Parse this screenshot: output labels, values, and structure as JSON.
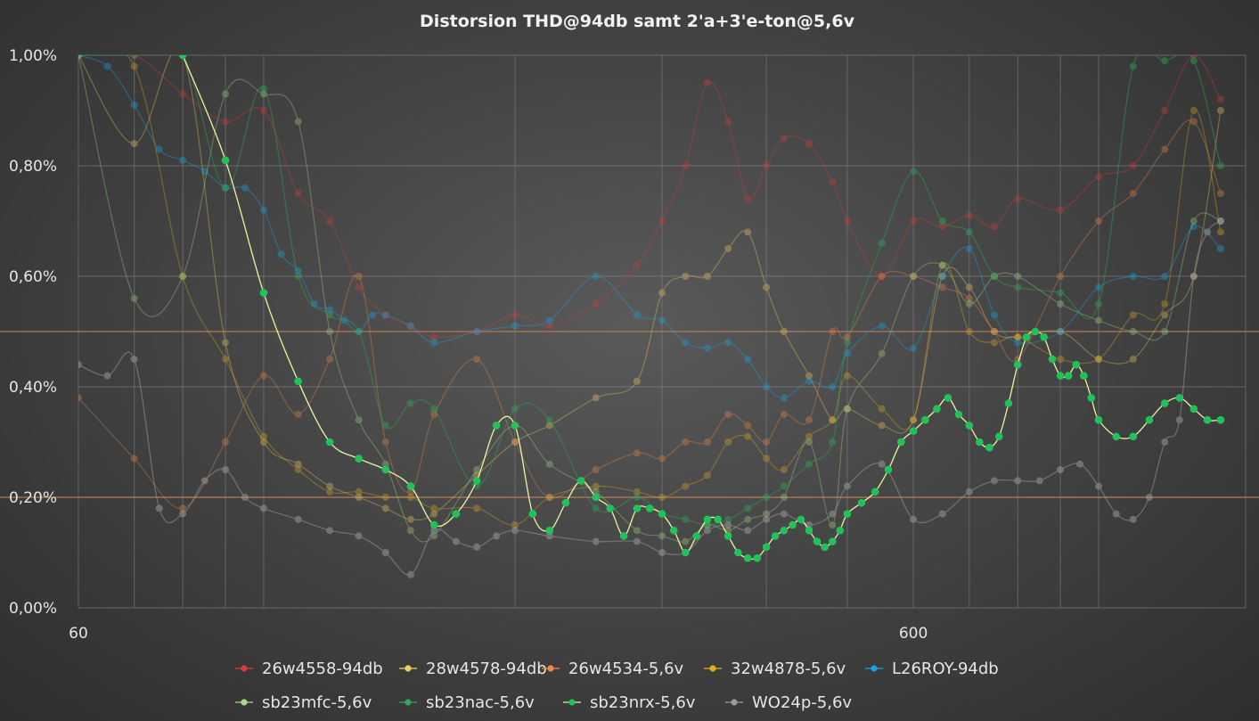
{
  "chart_data": {
    "type": "line",
    "title": "Distorsion THD@94db samt 2'a+3'e-ton@5,6v",
    "x_scale": "log",
    "xlim": [
      60,
      1500
    ],
    "ylim": [
      0,
      1.0
    ],
    "y_ticks": [
      "0,00%",
      "0,20%",
      "0,40%",
      "0,60%",
      "0,80%",
      "1,00%"
    ],
    "y_tick_values": [
      0,
      0.2,
      0.4,
      0.6,
      0.8,
      1.0
    ],
    "x_ticks": [
      "60",
      "600"
    ],
    "x_tick_values": [
      60,
      600
    ],
    "grid": true,
    "legend_position": "bottom",
    "reference_lines": [
      {
        "y": 0.5,
        "color": "#b07850"
      },
      {
        "y": 0.2,
        "color": "#b07850"
      }
    ],
    "series": [
      {
        "name": "26w4558-94db",
        "color": "#e03a3a",
        "opacity": 0.35,
        "x": [
          60,
          70,
          80,
          90,
          100,
          110,
          120,
          130,
          140,
          150,
          160,
          180,
          200,
          220,
          250,
          280,
          300,
          320,
          340,
          360,
          380,
          400,
          420,
          450,
          480,
          500,
          550,
          600,
          650,
          700,
          750,
          800,
          900,
          1000,
          1100,
          1200,
          1300,
          1400
        ],
        "y": [
          1.0,
          1.0,
          0.93,
          0.88,
          0.9,
          0.75,
          0.7,
          0.58,
          0.53,
          0.51,
          0.49,
          0.5,
          0.53,
          0.51,
          0.55,
          0.62,
          0.7,
          0.8,
          0.95,
          0.88,
          0.74,
          0.8,
          0.85,
          0.84,
          0.77,
          0.7,
          0.6,
          0.7,
          0.69,
          0.71,
          0.69,
          0.74,
          0.72,
          0.78,
          0.8,
          0.9,
          1.0,
          0.92
        ]
      },
      {
        "name": "28w4578-94db",
        "color": "#f2cf63",
        "opacity": 0.35,
        "x": [
          60,
          70,
          80,
          90,
          100,
          110,
          120,
          130,
          140,
          150,
          160,
          180,
          200,
          220,
          250,
          280,
          300,
          320,
          340,
          360,
          380,
          400,
          420,
          450,
          480,
          500,
          550,
          600,
          650,
          700,
          750,
          800,
          900,
          1000,
          1100,
          1200,
          1300,
          1400
        ],
        "y": [
          1.0,
          0.84,
          1.0,
          0.48,
          0.3,
          0.26,
          0.22,
          0.2,
          0.18,
          0.16,
          0.17,
          0.24,
          0.3,
          0.33,
          0.38,
          0.41,
          0.57,
          0.6,
          0.6,
          0.65,
          0.68,
          0.58,
          0.5,
          0.42,
          0.34,
          0.36,
          0.33,
          0.34,
          0.6,
          0.58,
          0.5,
          0.49,
          0.5,
          0.45,
          0.45,
          0.53,
          0.6,
          0.9
        ]
      },
      {
        "name": "26w4534-5,6v",
        "color": "#f08a4a",
        "opacity": 0.35,
        "x": [
          60,
          70,
          80,
          90,
          100,
          110,
          120,
          130,
          140,
          150,
          160,
          180,
          200,
          220,
          250,
          280,
          300,
          320,
          340,
          360,
          380,
          400,
          420,
          450,
          480,
          500,
          550,
          600,
          650,
          700,
          750,
          800,
          900,
          1000,
          1100,
          1200,
          1300,
          1400
        ],
        "y": [
          0.38,
          0.27,
          0.18,
          0.3,
          0.42,
          0.35,
          0.45,
          0.6,
          0.3,
          0.21,
          0.35,
          0.45,
          0.3,
          0.2,
          0.25,
          0.28,
          0.27,
          0.3,
          0.3,
          0.35,
          0.33,
          0.3,
          0.35,
          0.34,
          0.5,
          0.49,
          0.6,
          0.6,
          0.58,
          0.56,
          0.5,
          0.45,
          0.6,
          0.7,
          0.75,
          0.83,
          0.88,
          0.75
        ]
      },
      {
        "name": "32w4878-5,6v",
        "color": "#e0b020",
        "opacity": 0.35,
        "x": [
          60,
          70,
          80,
          90,
          100,
          110,
          120,
          130,
          140,
          150,
          160,
          180,
          200,
          220,
          250,
          280,
          300,
          320,
          340,
          360,
          380,
          400,
          420,
          450,
          480,
          500,
          550,
          600,
          650,
          700,
          750,
          800,
          900,
          1000,
          1100,
          1200,
          1300,
          1400
        ],
        "y": [
          1.0,
          0.98,
          0.6,
          0.45,
          0.31,
          0.25,
          0.21,
          0.21,
          0.2,
          0.2,
          0.18,
          0.18,
          0.15,
          0.2,
          0.22,
          0.21,
          0.2,
          0.22,
          0.24,
          0.3,
          0.31,
          0.27,
          0.25,
          0.31,
          0.34,
          0.42,
          0.36,
          0.34,
          0.62,
          0.5,
          0.48,
          0.49,
          0.45,
          0.45,
          0.53,
          0.55,
          0.9,
          0.68
        ]
      },
      {
        "name": "L26ROY-94db",
        "color": "#1aa3e0",
        "opacity": 0.4,
        "x": [
          60,
          65,
          70,
          75,
          80,
          85,
          90,
          95,
          100,
          105,
          110,
          115,
          120,
          125,
          130,
          135,
          140,
          150,
          160,
          180,
          200,
          220,
          250,
          280,
          300,
          320,
          340,
          360,
          380,
          400,
          420,
          450,
          480,
          500,
          550,
          600,
          650,
          700,
          750,
          800,
          900,
          1000,
          1100,
          1200,
          1300,
          1400
        ],
        "y": [
          1.0,
          0.98,
          0.91,
          0.83,
          0.81,
          0.79,
          0.76,
          0.76,
          0.72,
          0.64,
          0.61,
          0.55,
          0.54,
          0.52,
          0.5,
          0.53,
          0.53,
          0.51,
          0.48,
          0.5,
          0.51,
          0.52,
          0.6,
          0.53,
          0.52,
          0.48,
          0.47,
          0.48,
          0.45,
          0.4,
          0.38,
          0.41,
          0.4,
          0.46,
          0.51,
          0.47,
          0.6,
          0.65,
          0.53,
          0.48,
          0.5,
          0.58,
          0.6,
          0.6,
          0.69,
          0.65
        ]
      },
      {
        "name": "sb23mfc-5,6v",
        "color": "#a7d98a",
        "opacity": 0.35,
        "x": [
          60,
          70,
          80,
          90,
          100,
          110,
          120,
          130,
          140,
          150,
          160,
          180,
          200,
          220,
          250,
          280,
          300,
          320,
          340,
          360,
          380,
          400,
          420,
          450,
          480,
          500,
          550,
          600,
          650,
          700,
          750,
          800,
          900,
          1000,
          1100,
          1200,
          1300,
          1400
        ],
        "y": [
          1.0,
          0.56,
          0.6,
          0.93,
          0.93,
          0.88,
          0.5,
          0.34,
          0.26,
          0.14,
          0.13,
          0.25,
          0.33,
          0.26,
          0.21,
          0.14,
          0.13,
          0.12,
          0.15,
          0.14,
          0.16,
          0.17,
          0.2,
          0.3,
          0.15,
          0.36,
          0.46,
          0.6,
          0.62,
          0.55,
          0.6,
          0.6,
          0.55,
          0.52,
          0.5,
          0.5,
          0.7,
          0.7
        ]
      },
      {
        "name": "sb23nac-5,6v",
        "color": "#2fa85a",
        "opacity": 0.45,
        "x": [
          60,
          70,
          80,
          90,
          100,
          110,
          120,
          130,
          140,
          150,
          160,
          180,
          200,
          220,
          250,
          280,
          300,
          320,
          340,
          360,
          380,
          400,
          420,
          450,
          480,
          500,
          550,
          600,
          650,
          700,
          750,
          800,
          900,
          1000,
          1100,
          1200,
          1300,
          1400
        ],
        "y": [
          1.0,
          1.0,
          1.0,
          0.76,
          0.94,
          0.6,
          0.53,
          0.5,
          0.33,
          0.37,
          0.36,
          0.22,
          0.36,
          0.34,
          0.18,
          0.2,
          0.17,
          0.16,
          0.15,
          0.16,
          0.18,
          0.2,
          0.22,
          0.26,
          0.3,
          0.48,
          0.66,
          0.79,
          0.7,
          0.68,
          0.6,
          0.58,
          0.57,
          0.55,
          0.98,
          0.99,
          0.99,
          0.8
        ]
      },
      {
        "name": "sb23nrx-5,6v",
        "color": "#22c25a",
        "opacity": 1.0,
        "highlight": true,
        "x": [
          80,
          90,
          100,
          110,
          120,
          130,
          140,
          150,
          160,
          170,
          180,
          190,
          200,
          210,
          220,
          230,
          240,
          250,
          260,
          270,
          280,
          290,
          300,
          310,
          320,
          330,
          340,
          350,
          360,
          370,
          380,
          390,
          400,
          410,
          420,
          430,
          440,
          450,
          460,
          470,
          480,
          490,
          500,
          520,
          540,
          560,
          580,
          600,
          620,
          640,
          660,
          680,
          700,
          720,
          740,
          760,
          780,
          800,
          820,
          840,
          860,
          880,
          900,
          920,
          940,
          960,
          980,
          1000,
          1050,
          1100,
          1150,
          1200,
          1250,
          1300,
          1350,
          1400
        ],
        "y": [
          1.0,
          0.81,
          0.57,
          0.41,
          0.3,
          0.27,
          0.25,
          0.22,
          0.15,
          0.17,
          0.23,
          0.33,
          0.33,
          0.17,
          0.14,
          0.19,
          0.23,
          0.2,
          0.18,
          0.13,
          0.18,
          0.18,
          0.17,
          0.14,
          0.1,
          0.13,
          0.16,
          0.16,
          0.13,
          0.1,
          0.09,
          0.09,
          0.11,
          0.13,
          0.14,
          0.15,
          0.16,
          0.14,
          0.12,
          0.11,
          0.12,
          0.14,
          0.17,
          0.19,
          0.21,
          0.25,
          0.3,
          0.32,
          0.34,
          0.36,
          0.38,
          0.35,
          0.33,
          0.3,
          0.29,
          0.31,
          0.37,
          0.44,
          0.49,
          0.5,
          0.49,
          0.45,
          0.42,
          0.42,
          0.44,
          0.42,
          0.38,
          0.34,
          0.31,
          0.31,
          0.34,
          0.37,
          0.38,
          0.36,
          0.34,
          0.34
        ]
      },
      {
        "name": "WO24p-5,6v",
        "color": "#9a9a9a",
        "opacity": 0.55,
        "x": [
          60,
          65,
          70,
          75,
          80,
          85,
          90,
          95,
          100,
          110,
          120,
          130,
          140,
          150,
          160,
          170,
          180,
          190,
          200,
          220,
          250,
          280,
          300,
          320,
          340,
          360,
          380,
          400,
          420,
          450,
          480,
          500,
          550,
          600,
          650,
          700,
          750,
          800,
          850,
          900,
          950,
          1000,
          1050,
          1100,
          1150,
          1200,
          1250,
          1300,
          1350,
          1400
        ],
        "y": [
          0.44,
          0.42,
          0.45,
          0.18,
          0.17,
          0.23,
          0.25,
          0.2,
          0.18,
          0.16,
          0.14,
          0.13,
          0.1,
          0.06,
          0.14,
          0.12,
          0.11,
          0.13,
          0.14,
          0.13,
          0.12,
          0.12,
          0.1,
          0.1,
          0.14,
          0.15,
          0.14,
          0.16,
          0.17,
          0.15,
          0.17,
          0.22,
          0.26,
          0.16,
          0.17,
          0.21,
          0.23,
          0.23,
          0.23,
          0.25,
          0.26,
          0.22,
          0.17,
          0.16,
          0.2,
          0.3,
          0.34,
          0.6,
          0.68,
          0.7
        ]
      }
    ]
  }
}
